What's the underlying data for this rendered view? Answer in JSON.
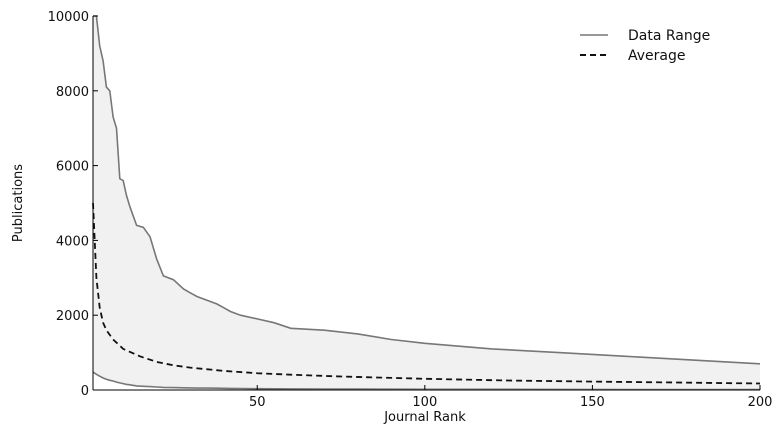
{
  "chart_data": {
    "type": "area",
    "xlabel": "Journal Rank",
    "ylabel": "Publications",
    "xlim": [
      1,
      200
    ],
    "ylim": [
      0,
      10000
    ],
    "xticks": [
      50,
      100,
      150,
      200
    ],
    "yticks": [
      0,
      2000,
      4000,
      6000,
      8000,
      10000
    ],
    "legend": {
      "placement": "top-right",
      "entries": [
        {
          "label": "Data Range",
          "style": "solid",
          "color": "#777777"
        },
        {
          "label": "Average",
          "style": "dashed",
          "color": "#111111"
        }
      ]
    },
    "colors": {
      "range_fill": "#f1f1f1",
      "range_line": "#777777",
      "average_line": "#111111"
    },
    "series": [
      {
        "name": "Data Range",
        "x": [
          1,
          2,
          3,
          4,
          5,
          6,
          7,
          8,
          9,
          10,
          11,
          12,
          14,
          16,
          18,
          20,
          22,
          25,
          28,
          30,
          32,
          35,
          38,
          40,
          42,
          45,
          50,
          55,
          60,
          70,
          80,
          90,
          100,
          120,
          140,
          160,
          180,
          200
        ],
        "max": [
          10000,
          10000,
          9200,
          8800,
          8100,
          8000,
          7300,
          7000,
          5650,
          5600,
          5200,
          4900,
          4400,
          4350,
          4100,
          3500,
          3050,
          2950,
          2700,
          2600,
          2500,
          2400,
          2300,
          2200,
          2100,
          2000,
          1900,
          1800,
          1650,
          1600,
          1500,
          1350,
          1250,
          1100,
          1000,
          900,
          800,
          700
        ],
        "min": [
          480,
          420,
          370,
          320,
          290,
          260,
          240,
          210,
          190,
          170,
          150,
          140,
          110,
          100,
          90,
          80,
          70,
          65,
          60,
          55,
          52,
          50,
          48,
          45,
          42,
          40,
          35,
          32,
          30,
          27,
          25,
          22,
          20,
          18,
          15,
          13,
          11,
          10
        ]
      },
      {
        "name": "Average",
        "x": [
          1,
          2,
          3,
          4,
          5,
          7,
          10,
          15,
          20,
          25,
          30,
          40,
          50,
          60,
          75,
          100,
          125,
          150,
          175,
          200
        ],
        "values": [
          5000,
          3000,
          2200,
          1800,
          1600,
          1350,
          1100,
          900,
          750,
          660,
          600,
          510,
          450,
          410,
          360,
          300,
          255,
          225,
          200,
          175
        ]
      }
    ]
  }
}
